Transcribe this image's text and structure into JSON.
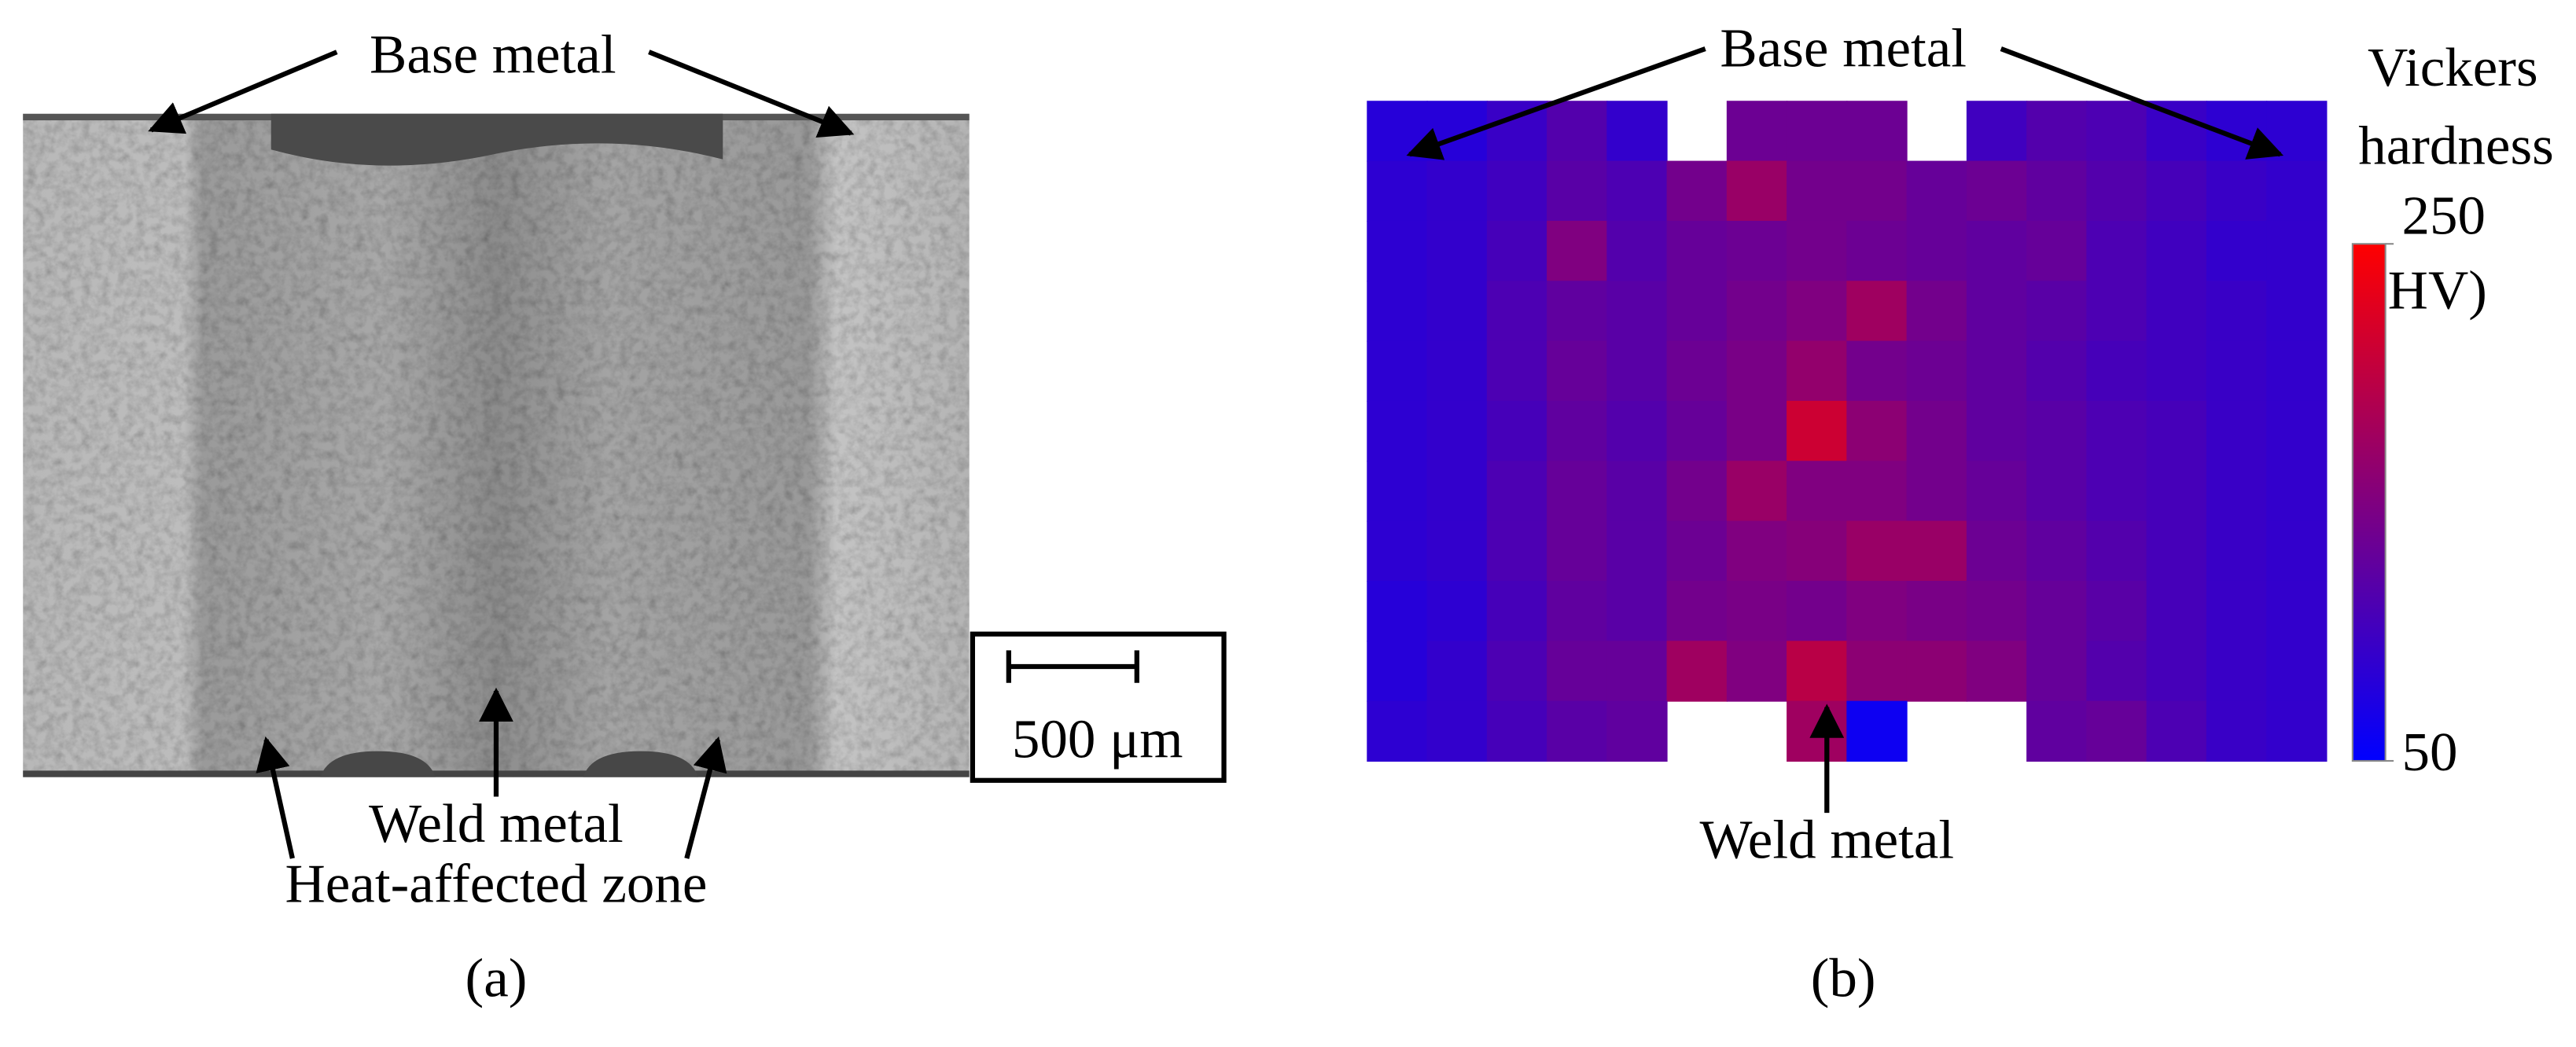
{
  "panel_a": {
    "label": "(a)",
    "annotations": [
      "Base metal",
      "Weld metal",
      "Heat-affected zone"
    ],
    "scale_bar": "500 μm"
  },
  "panel_b": {
    "label": "(b)",
    "annotations": [
      "Base metal",
      "Weld metal"
    ],
    "colorbar_title": [
      "Vickers",
      "hardness",
      "(HV)"
    ]
  },
  "chart_data": {
    "type": "heatmap",
    "values": [
      [
        80,
        80,
        95,
        115,
        90,
        null,
        135,
        135,
        135,
        null,
        100,
        115,
        110,
        95,
        85,
        85
      ],
      [
        85,
        90,
        100,
        120,
        110,
        140,
        170,
        140,
        140,
        130,
        135,
        125,
        115,
        105,
        95,
        90
      ],
      [
        85,
        90,
        105,
        150,
        115,
        130,
        135,
        140,
        135,
        130,
        125,
        130,
        110,
        100,
        90,
        90
      ],
      [
        85,
        90,
        110,
        125,
        120,
        130,
        140,
        150,
        175,
        140,
        125,
        120,
        110,
        100,
        95,
        90
      ],
      [
        85,
        90,
        110,
        130,
        120,
        135,
        145,
        165,
        140,
        135,
        125,
        115,
        105,
        100,
        95,
        90
      ],
      [
        85,
        90,
        105,
        125,
        115,
        130,
        145,
        210,
        160,
        140,
        125,
        120,
        110,
        105,
        95,
        90
      ],
      [
        85,
        90,
        110,
        130,
        120,
        140,
        170,
        150,
        150,
        140,
        130,
        120,
        110,
        105,
        95,
        90
      ],
      [
        85,
        90,
        110,
        130,
        120,
        135,
        150,
        155,
        170,
        170,
        135,
        125,
        115,
        105,
        95,
        90
      ],
      [
        80,
        85,
        105,
        125,
        120,
        140,
        145,
        140,
        150,
        145,
        140,
        130,
        120,
        105,
        95,
        90
      ],
      [
        80,
        90,
        110,
        130,
        130,
        175,
        150,
        195,
        160,
        160,
        150,
        130,
        115,
        105,
        95,
        90
      ],
      [
        85,
        90,
        105,
        120,
        125,
        null,
        null,
        175,
        60,
        null,
        null,
        125,
        130,
        110,
        95,
        90
      ]
    ],
    "colors": [
      "#0000ff",
      "#ff0000"
    ],
    "clim": [
      50,
      250
    ],
    "cticks": [
      50,
      250
    ]
  }
}
